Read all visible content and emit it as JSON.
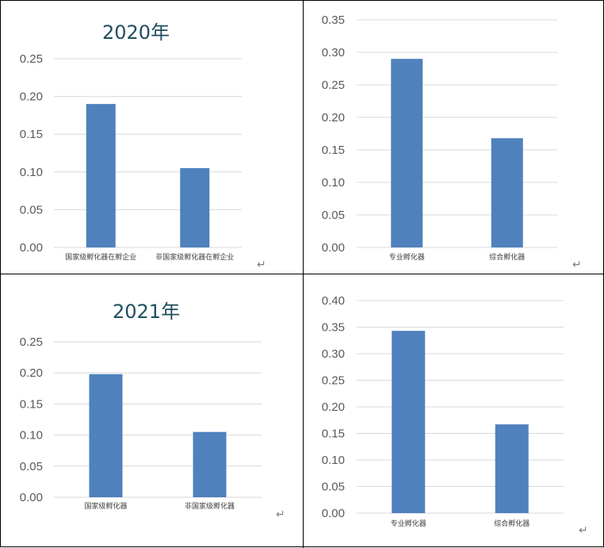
{
  "colors": {
    "bar": "#4f81bd",
    "grid": "#d9d9d9",
    "tick": "#595959",
    "title": "#1f4e5f"
  },
  "return_mark": "↵",
  "chart_data": [
    {
      "type": "bar",
      "title": "2020年",
      "categories": [
        "国家级孵化器在孵企业",
        "非国家级孵化器在孵企业"
      ],
      "values": [
        0.19,
        0.105
      ],
      "ylim": [
        0,
        0.25
      ],
      "yticks": [
        "0.00",
        "0.05",
        "0.10",
        "0.15",
        "0.20",
        "0.25"
      ],
      "grid": true
    },
    {
      "type": "bar",
      "title": "",
      "categories": [
        "专业孵化器",
        "综合孵化器"
      ],
      "values": [
        0.29,
        0.168
      ],
      "ylim": [
        0,
        0.35
      ],
      "yticks": [
        "0.00",
        "0.05",
        "0.10",
        "0.15",
        "0.20",
        "0.25",
        "0.30",
        "0.35"
      ],
      "grid": true
    },
    {
      "type": "bar",
      "title": "2021年",
      "categories": [
        "国家级孵化器",
        "非国家级孵化器"
      ],
      "values": [
        0.198,
        0.105
      ],
      "ylim": [
        0,
        0.25
      ],
      "yticks": [
        "0.00",
        "0.05",
        "0.10",
        "0.15",
        "0.20",
        "0.25"
      ],
      "grid": true
    },
    {
      "type": "bar",
      "title": "",
      "categories": [
        "专业孵化器",
        "综合孵化器"
      ],
      "values": [
        0.343,
        0.167
      ],
      "ylim": [
        0,
        0.4
      ],
      "yticks": [
        "0.00",
        "0.05",
        "0.10",
        "0.15",
        "0.20",
        "0.25",
        "0.30",
        "0.35",
        "0.40"
      ],
      "grid": true
    }
  ]
}
